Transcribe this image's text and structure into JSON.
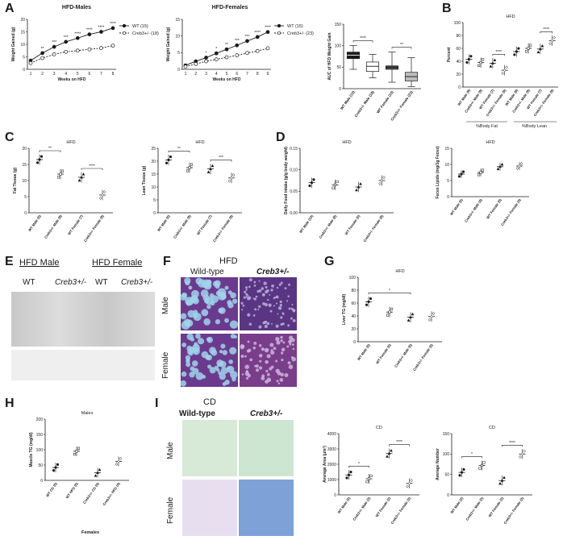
{
  "panels": {
    "A": "A",
    "B": "B",
    "C": "C",
    "D": "D",
    "E": "E",
    "F": "F",
    "G": "G",
    "H": "H",
    "I": "I"
  },
  "colors": {
    "ink": "#1a1a1a",
    "he_purple": "#6b3a8e",
    "he_pink": "#d9a3c6",
    "he_blue": "#9fd4ea"
  },
  "a1": {
    "title": "HFD-Males",
    "ylabel": "Weight Gained (g)",
    "xlabel": "Weeks on HFD",
    "legend": [
      "WT (15)",
      "Creb3+/- (18)"
    ]
  },
  "a2": {
    "title": "HFD-Females",
    "ylabel": "Weight Gained (g)",
    "xlabel": "Weeks on HFD",
    "legend": [
      "WT (15)",
      "Creb3+/- (23)"
    ]
  },
  "a3": {
    "ylabel": "AUC of HFD Weight Gain"
  },
  "b": {
    "title": "HFD",
    "ylabel": "Percent",
    "group1": "%Body Fat",
    "group2": "%Body Lean"
  },
  "c": {
    "title_fat": "HFD",
    "ylabel_fat": "Fat Tissue (g)",
    "title_lean": "HFD",
    "ylabel_lean": "Lean Tissue (g)"
  },
  "d": {
    "title_food": "HFD",
    "ylabel_food": "Daily Food intake (g/g body weight)",
    "title_feces": "HFD",
    "ylabel_feces": "Feces Lipids (mg/1g Feces)"
  },
  "e": {
    "hfd_male": "HFD Male",
    "hfd_female": "HFD Female",
    "wt1": "WT",
    "creb1": "Creb3+/-",
    "wt2": "WT",
    "creb2": "Creb3+/-"
  },
  "f": {
    "title": "HFD",
    "wt": "Wild-type",
    "creb": "Creb3+/-",
    "male": "Male",
    "female": "Female"
  },
  "g": {
    "title": "HFD",
    "ylabel": "Liver TG (mg/dl)"
  },
  "h": {
    "title": "Males",
    "ylabel": "Muscle TG (mg/dl)",
    "title2": "Females"
  },
  "i": {
    "title": "CD",
    "wt": "Wild-type",
    "creb": "Creb3+/-",
    "male": "Male",
    "female": "Female",
    "area_title": "CD",
    "area_ylabel": "Average Area (μm²)",
    "num_title": "CD",
    "num_ylabel": "Average Number"
  },
  "chart_data": [
    {
      "id": "A-males",
      "type": "line",
      "title": "HFD-Males",
      "xlabel": "Weeks on HFD",
      "ylabel": "Weight Gained (g)",
      "x": [
        1,
        2,
        3,
        4,
        5,
        6,
        7,
        8
      ],
      "xlim": [
        1,
        8
      ],
      "ylim": [
        0,
        20
      ],
      "yticks": [
        0,
        5,
        10,
        15,
        20
      ],
      "series": [
        {
          "name": "WT (15)",
          "values": [
            3.5,
            6.5,
            9,
            11,
            12.5,
            14,
            15,
            16.5
          ],
          "marker": "filled-circle"
        },
        {
          "name": "Creb3+/- (18)",
          "values": [
            2.5,
            4.5,
            6,
            7,
            7.5,
            8,
            8.5,
            9.5
          ],
          "marker": "open-circle"
        }
      ],
      "significance": [
        "",
        "**",
        "***",
        "***",
        "****",
        "****",
        "****",
        "****"
      ]
    },
    {
      "id": "A-females",
      "type": "line",
      "title": "HFD-Females",
      "xlabel": "Weeks on HFD",
      "ylabel": "Weight Gained (g)",
      "x": [
        1,
        2,
        3,
        4,
        5,
        6,
        7,
        8,
        9
      ],
      "xlim": [
        1,
        9
      ],
      "ylim": [
        0,
        15
      ],
      "yticks": [
        0,
        5,
        10,
        15
      ],
      "series": [
        {
          "name": "WT (15)",
          "values": [
            1.2,
            2.4,
            3.5,
            4.8,
            6,
            7.2,
            8.5,
            9.7,
            11.2
          ],
          "marker": "filled-circle"
        },
        {
          "name": "Creb3+/- (23)",
          "values": [
            0.8,
            1.6,
            2.4,
            3,
            3.6,
            4.2,
            4.9,
            5.5,
            6.3
          ],
          "marker": "open-circle"
        }
      ],
      "significance": [
        "",
        "",
        "*",
        "*",
        "**",
        "***",
        "***",
        "****",
        "****"
      ]
    },
    {
      "id": "A-auc",
      "type": "box",
      "ylabel": "AUC of HFD Weight Gain",
      "ylim": [
        0,
        150
      ],
      "yticks": [
        0,
        50,
        100,
        150
      ],
      "categories": [
        "WT Male (15)",
        "Creb3+/- Male (18)",
        "WT Female (15)",
        "Creb3+/- Female (23)"
      ],
      "boxes": [
        {
          "min": 45,
          "q1": 70,
          "median": 78,
          "q3": 85,
          "max": 100
        },
        {
          "min": 25,
          "q1": 40,
          "median": 52,
          "q3": 62,
          "max": 80
        },
        {
          "min": 15,
          "q1": 45,
          "median": 50,
          "q3": 53,
          "max": 85
        },
        {
          "min": 5,
          "q1": 18,
          "median": 28,
          "q3": 38,
          "max": 72
        }
      ],
      "significance": [
        {
          "pair": [
            0,
            1
          ],
          "label": "****"
        },
        {
          "pair": [
            2,
            3
          ],
          "label": "**"
        }
      ]
    },
    {
      "id": "B",
      "type": "scatter",
      "title": "HFD",
      "ylabel": "Percent",
      "ylim": [
        0,
        100
      ],
      "yticks": [
        0,
        20,
        40,
        60,
        80,
        100
      ],
      "categories": [
        "WT Male (9)",
        "Creb3+/- Male (9)",
        "WT Female (7)",
        "Creb3+/- Female (9)",
        "WT Male (9)",
        "Creb3+/- Male (9)",
        "WT Female (7)",
        "Creb3+/- Female (9)"
      ],
      "groups": [
        "%Body Fat",
        "%Body Fat",
        "%Body Fat",
        "%Body Fat",
        "%Body Lean",
        "%Body Lean",
        "%Body Lean",
        "%Body Lean"
      ],
      "means": [
        43,
        38,
        37,
        26,
        55,
        60,
        59,
        72
      ],
      "significance": [
        {
          "pair": [
            2,
            3
          ],
          "label": "****"
        },
        {
          "pair": [
            6,
            7
          ],
          "label": "****"
        }
      ]
    },
    {
      "id": "C-fat",
      "type": "scatter",
      "title": "HFD",
      "ylabel": "Fat Tissue (g)",
      "ylim": [
        0,
        20
      ],
      "yticks": [
        0,
        5,
        10,
        15,
        20
      ],
      "categories": [
        "WT Male (5)",
        "Creb3+/- Male (9)",
        "WT Female (7)",
        "Creb3+/- Female (9)"
      ],
      "means": [
        16.5,
        12,
        11,
        5.5
      ],
      "significance": [
        {
          "pair": [
            0,
            1
          ],
          "label": "**"
        },
        {
          "pair": [
            2,
            3
          ],
          "label": "****"
        }
      ]
    },
    {
      "id": "C-lean",
      "type": "scatter",
      "title": "HFD",
      "ylabel": "Lean Tissue (g)",
      "ylim": [
        0,
        25
      ],
      "yticks": [
        0,
        5,
        10,
        15,
        20,
        25
      ],
      "categories": [
        "WT Male (5)",
        "Creb3+/- Male (9)",
        "WT Female (7)",
        "Creb3+/- Female (9)"
      ],
      "means": [
        20.5,
        17.5,
        17,
        13.5
      ],
      "significance": [
        {
          "pair": [
            0,
            1
          ],
          "label": "**"
        },
        {
          "pair": [
            2,
            3
          ],
          "label": "***"
        }
      ]
    },
    {
      "id": "D-food",
      "type": "scatter",
      "title": "HFD",
      "ylabel": "Daily Food intake (g/g body weight)",
      "ylim": [
        0,
        0.15
      ],
      "yticks": [
        0,
        0.05,
        0.1,
        0.15
      ],
      "ytick_labels": [
        "0.00",
        "0.05",
        "0.10",
        "0.15"
      ],
      "categories": [
        "WT Male (10)",
        "Creb3+/- Male (8)",
        "WT Female (5)",
        "Creb3+/- Female (8)"
      ],
      "means": [
        0.07,
        0.065,
        0.06,
        0.075
      ]
    },
    {
      "id": "D-feces",
      "type": "scatter",
      "title": "HFD",
      "ylabel": "Feces Lipids (mg/1g Feces)",
      "ylim": [
        0,
        15
      ],
      "yticks": [
        0,
        5,
        10,
        15
      ],
      "categories": [
        "WT Male (5)",
        "Creb3+/- Male (4)",
        "WT Female (5)",
        "Creb3+/- Female (4)"
      ],
      "means": [
        7,
        7.5,
        9.3,
        9.5
      ]
    },
    {
      "id": "G",
      "type": "scatter",
      "title": "HFD",
      "ylabel": "Liver TG (mg/dl)",
      "ylim": [
        0,
        100
      ],
      "yticks": [
        0,
        20,
        40,
        60,
        80,
        100
      ],
      "categories": [
        "WT Male (5)",
        "WT Female (5)",
        "Creb3+/- Male (5)",
        "Creb3+/- Female (5)"
      ],
      "means": [
        62,
        46,
        38,
        39
      ],
      "significance": [
        {
          "pair": [
            0,
            2
          ],
          "label": "*"
        }
      ]
    },
    {
      "id": "H-males",
      "type": "scatter",
      "title": "Males",
      "ylabel": "Muscle TG (mg/dl)",
      "ylim": [
        0,
        200
      ],
      "yticks": [
        0,
        50,
        100,
        150,
        200
      ],
      "categories": [
        "WT CD (5)",
        "WT HFD (5)",
        "Creb3+/- CD (5)",
        "Creb3+/- HFD (4)"
      ],
      "means": [
        42,
        95,
        25,
        62
      ]
    },
    {
      "id": "I-area",
      "type": "scatter",
      "title": "CD",
      "ylabel": "Average Area (μm²)",
      "ylim": [
        0,
        4000
      ],
      "yticks": [
        0,
        1000,
        2000,
        3000,
        4000
      ],
      "categories": [
        "WT Male (3)",
        "Creb3+/- Male (3)",
        "WT Female (3)",
        "Creb3+/- Female (3)"
      ],
      "means": [
        1300,
        1050,
        2700,
        750
      ],
      "significance": [
        {
          "pair": [
            0,
            1
          ],
          "label": "*"
        },
        {
          "pair": [
            2,
            3
          ],
          "label": "****"
        }
      ]
    },
    {
      "id": "I-number",
      "type": "scatter",
      "title": "CD",
      "ylabel": "Average Number",
      "ylim": [
        0,
        150
      ],
      "yticks": [
        0,
        50,
        100,
        150
      ],
      "categories": [
        "WT Male (3)",
        "Creb3+/- Male (3)",
        "WT Female (3)",
        "Creb3+/- Female (3)"
      ],
      "means": [
        55,
        72,
        35,
        100
      ],
      "significance": [
        {
          "pair": [
            0,
            1
          ],
          "label": "*"
        },
        {
          "pair": [
            2,
            3
          ],
          "label": "****"
        }
      ]
    }
  ]
}
